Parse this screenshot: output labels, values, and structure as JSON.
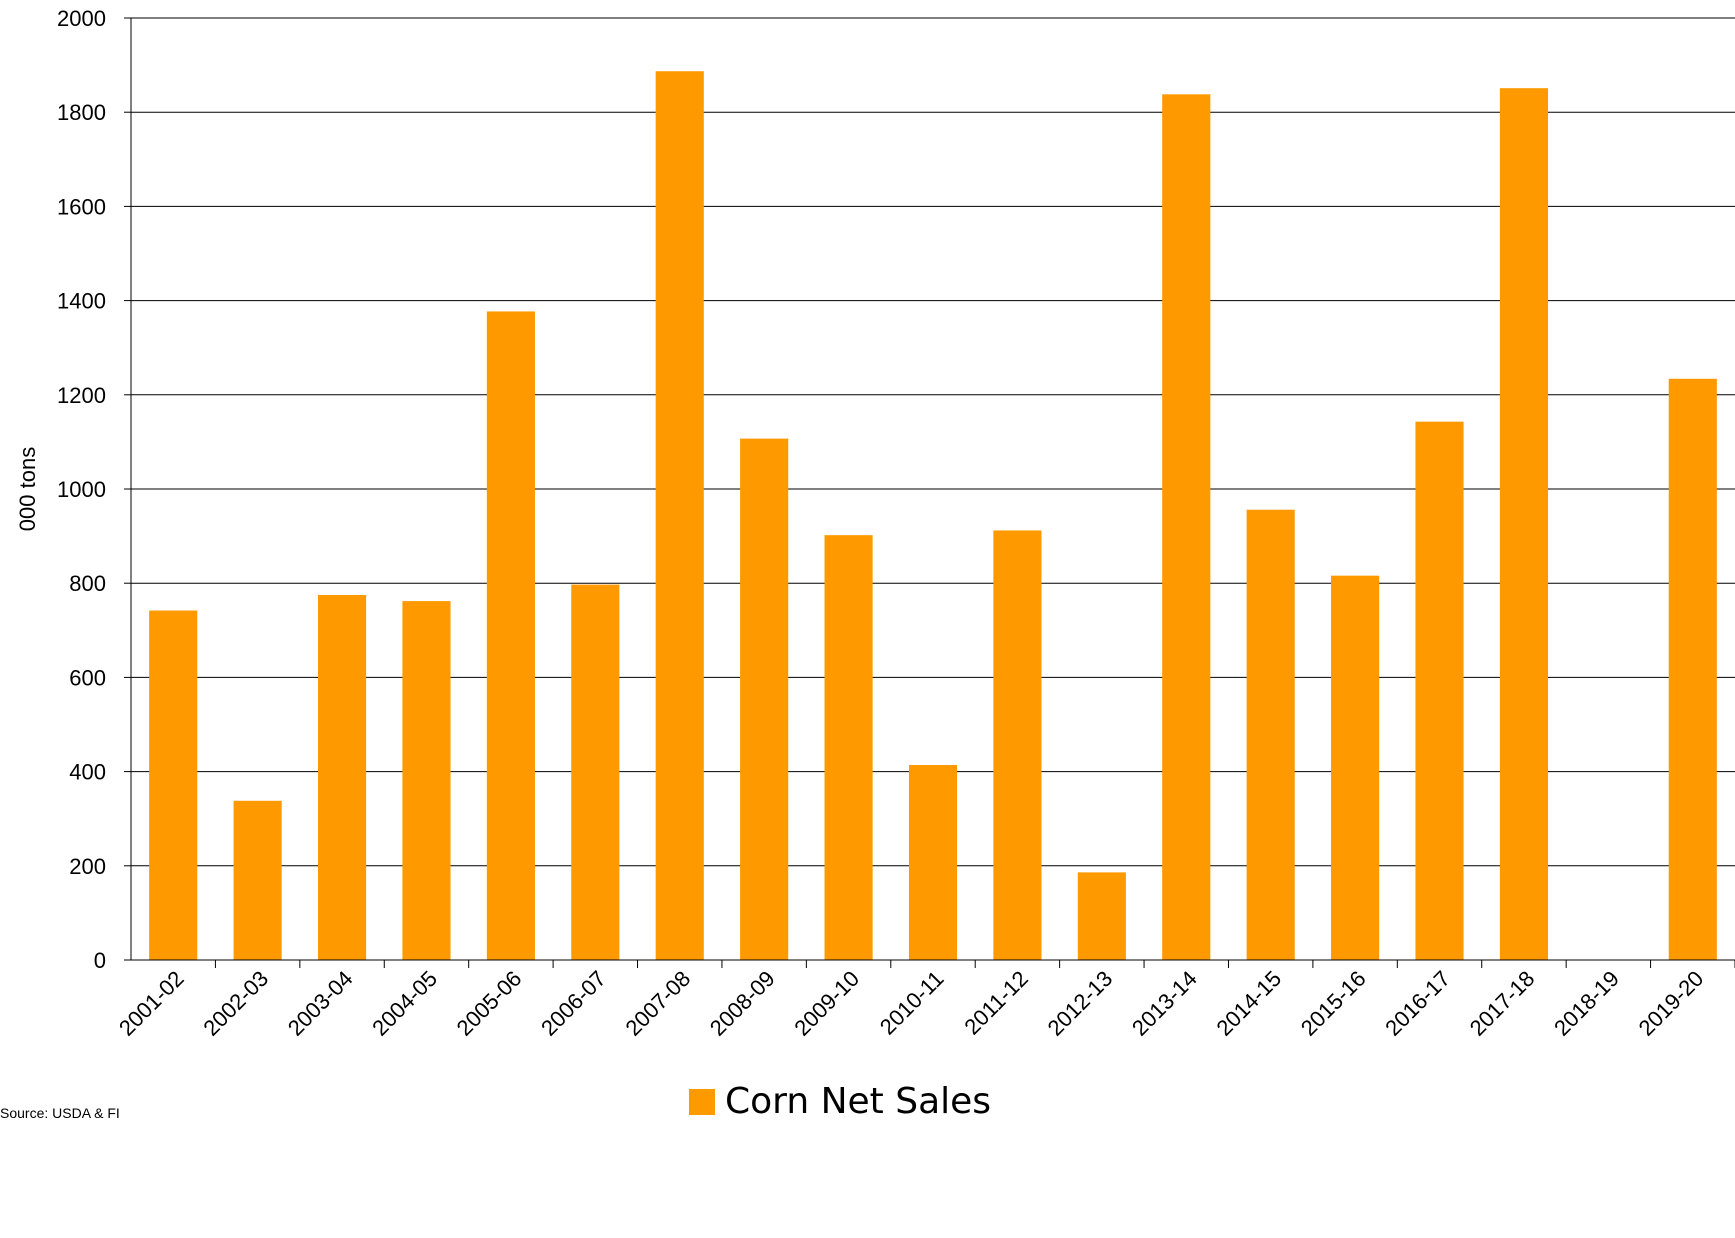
{
  "chart_data": {
    "type": "bar",
    "categories": [
      "2001-02",
      "2002-03",
      "2003-04",
      "2004-05",
      "2005-06",
      "2006-07",
      "2007-08",
      "2008-09",
      "2009-10",
      "2010-11",
      "2011-12",
      "2012-13",
      "2013-14",
      "2014-15",
      "2015-16",
      "2016-17",
      "2017-18",
      "2018-19",
      "2019-20"
    ],
    "series": [
      {
        "name": "Corn Net Sales",
        "values": [
          742,
          338,
          775,
          762,
          1377,
          797,
          1887,
          1107,
          902,
          414,
          912,
          186,
          1838,
          956,
          816,
          1143,
          1851,
          null,
          1234
        ]
      }
    ],
    "xlabel": "",
    "ylabel": "000 tons",
    "ylim": [
      0,
      2000
    ],
    "yticks": [
      0,
      200,
      400,
      600,
      800,
      1000,
      1200,
      1400,
      1600,
      1800,
      2000
    ],
    "grid": true,
    "legend_position": "bottom",
    "bar_color": "#FF9900",
    "source": "Source: USDA & FI"
  }
}
